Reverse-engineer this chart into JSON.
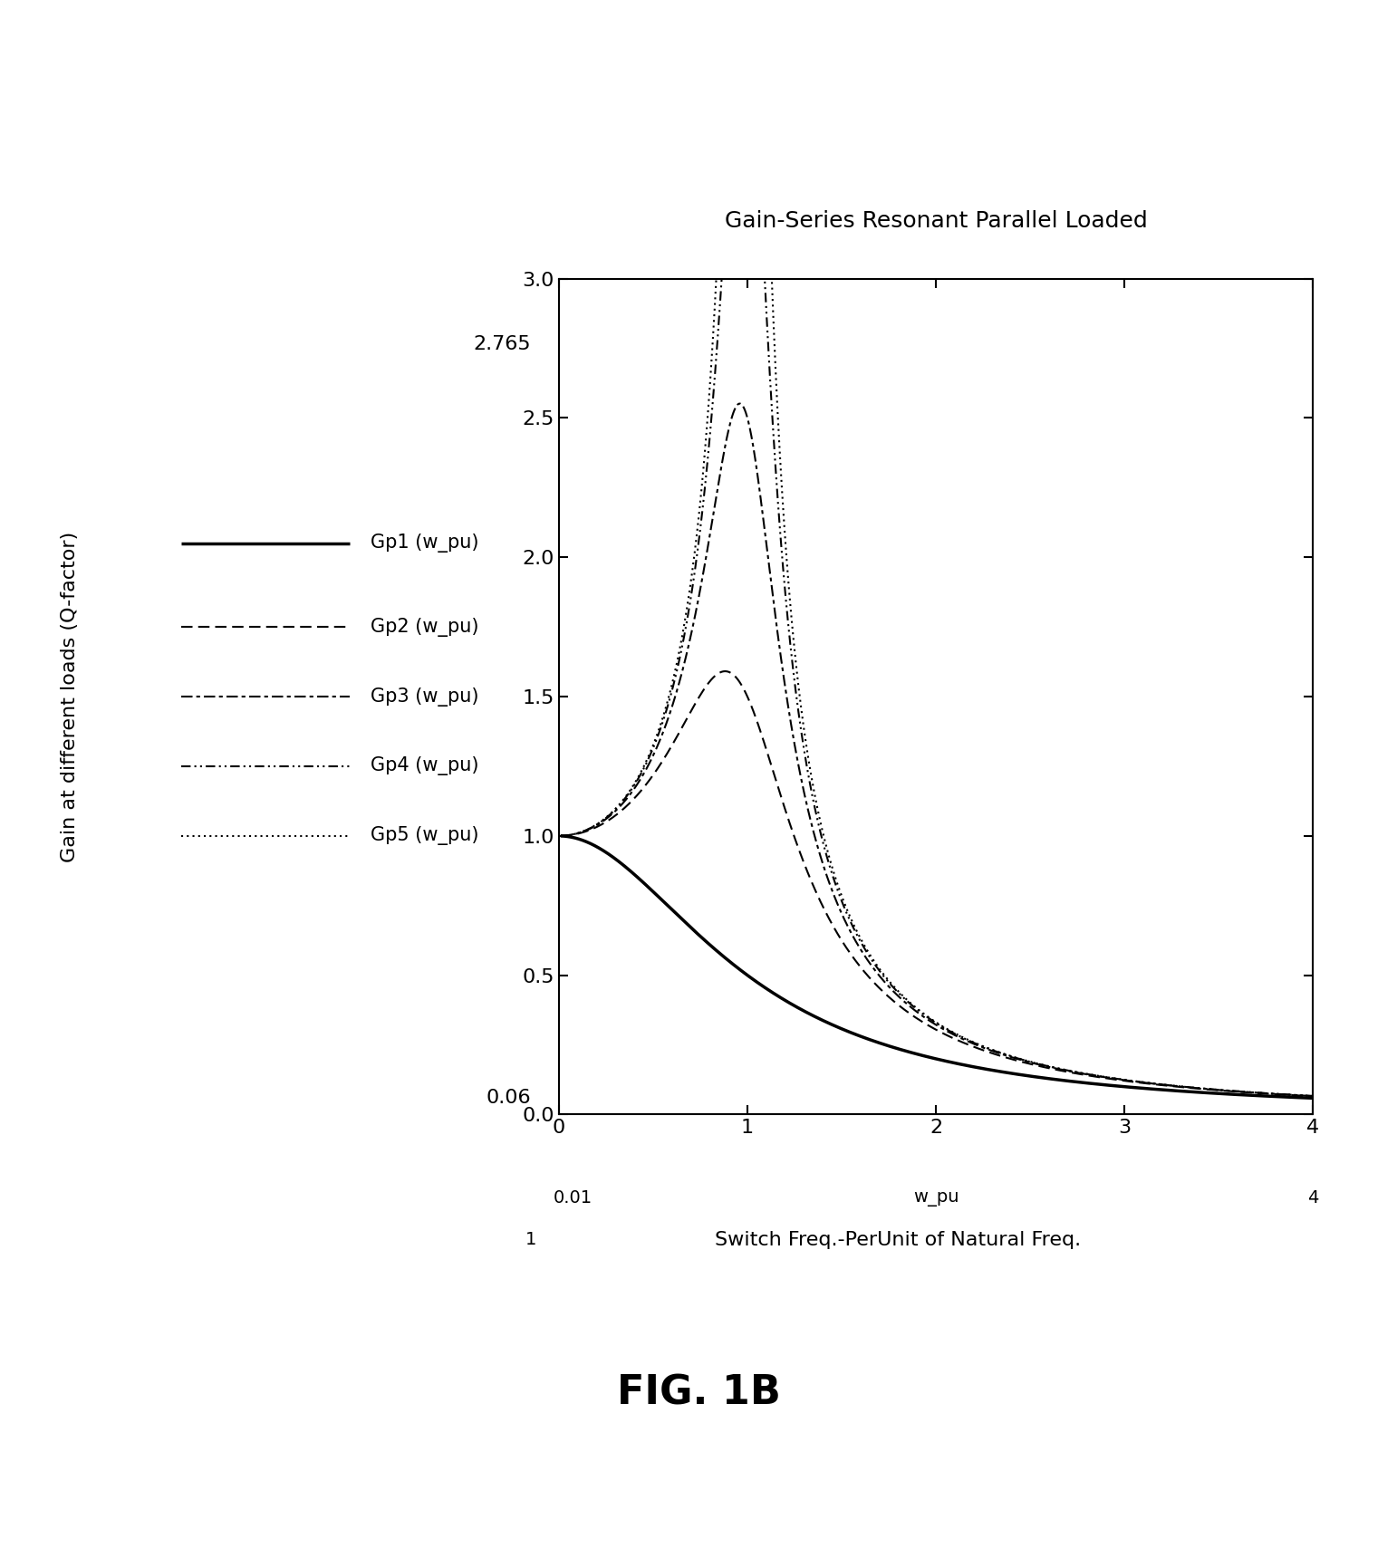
{
  "title": "Gain-Series Resonant Parallel Loaded",
  "ylabel": "Gain at different loads (Q-factor)",
  "xlim": [
    0,
    4
  ],
  "ylim": [
    0,
    3
  ],
  "yticks": [
    0,
    0.5,
    1.0,
    1.5,
    2.0,
    2.5,
    3.0
  ],
  "xticks": [
    0,
    1,
    2,
    3,
    4
  ],
  "extra_label_2765": "2.765",
  "extra_label_006": "0.06",
  "legend_labels": [
    "Gp1 (w_pu)",
    "Gp2 (w_pu)",
    "Gp3 (w_pu)",
    "Gp4 (w_pu)",
    "Gp5 (w_pu)"
  ],
  "line_widths": [
    2.5,
    1.5,
    1.5,
    1.5,
    1.5
  ],
  "background_color": "#ffffff",
  "fig_caption": "FIG. 1B",
  "xlabel_row1_left": "0.01",
  "xlabel_row1_mid": "w_pu",
  "xlabel_row1_right": "4",
  "xlabel_row2_left": "1",
  "xlabel_row2_text": "Switch Freq.-PerUnit of Natural Freq.",
  "Q_values": [
    0.5,
    1.5,
    2.5,
    4.0,
    6.0
  ],
  "title_fontsize": 18,
  "tick_labelsize": 16,
  "ylabel_fontsize": 16,
  "caption_fontsize": 32
}
